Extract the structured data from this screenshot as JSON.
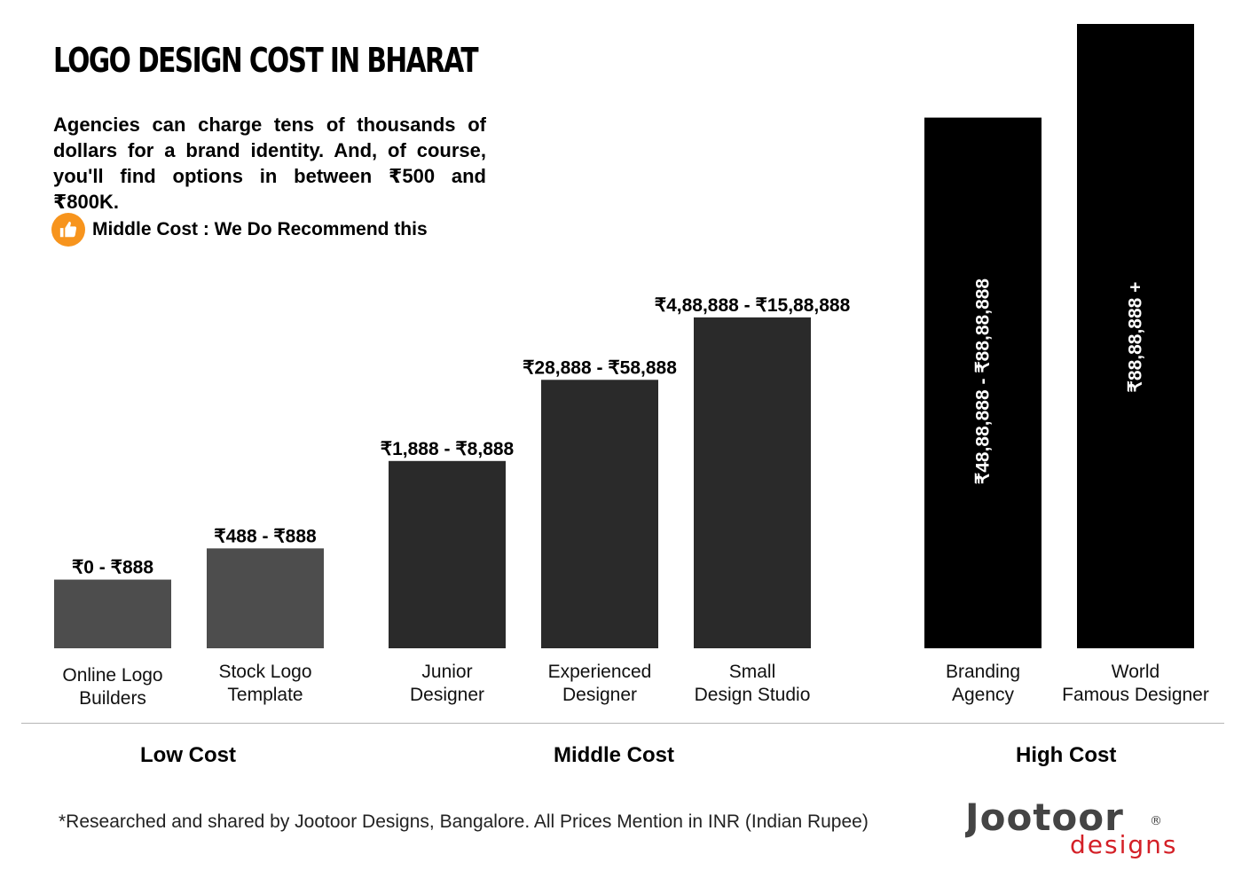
{
  "header": {
    "title": "LOGO DESIGN COST IN BHARAT",
    "intro": "Agencies can charge tens of thousands of dollars for a brand identity. And, of course, you'll find options in between ₹500 and ₹800K."
  },
  "legend": {
    "recommend_label": "Middle Cost : We Do Recommend this",
    "icon": "thumbs-up-icon",
    "icon_color": "#f7941d"
  },
  "chart_data": {
    "type": "bar",
    "title": "LOGO DESIGN COST IN BHARAT",
    "xlabel": "",
    "ylabel": "",
    "categories": [
      [
        "Online Logo",
        "Builders"
      ],
      [
        "Stock Logo",
        "Template"
      ],
      [
        "Junior",
        "Designer"
      ],
      [
        "Experienced",
        "Designer"
      ],
      [
        "Small",
        "Design Studio"
      ],
      [
        "Branding",
        "Agency"
      ],
      [
        "World",
        "Famous Designer"
      ]
    ],
    "value_labels": [
      "₹0 - ₹888",
      "₹488 - ₹888",
      "₹1,888 - ₹8,888",
      "₹28,888 - ₹58,888",
      "₹4,88,888 - ₹15,88,888",
      "₹48,88,888 - ₹88,88,888",
      "₹88,88,888 +"
    ],
    "relative_heights": [
      1.1,
      1.6,
      3.0,
      4.3,
      5.3,
      8.5,
      10.0
    ],
    "ylim": [
      0,
      10
    ],
    "groups": [
      "Low Cost",
      "Low Cost",
      "Middle Cost",
      "Middle Cost",
      "Middle Cost",
      "High Cost",
      "High Cost"
    ],
    "colors": {
      "Low Cost": "#4d4d4d",
      "Middle Cost": "#2a2a2a",
      "High Cost": "#000000"
    },
    "grid": false
  },
  "groups": {
    "low": "Low Cost",
    "middle": "Middle Cost",
    "high": "High Cost"
  },
  "footer": {
    "note": "*Researched and shared by Jootoor Designs, Bangalore. All Prices Mention in INR (Indian Rupee)",
    "logo_text": "Jootoor",
    "logo_sub": "designs",
    "logo_mark": "®",
    "logo_color": "#d42027"
  }
}
